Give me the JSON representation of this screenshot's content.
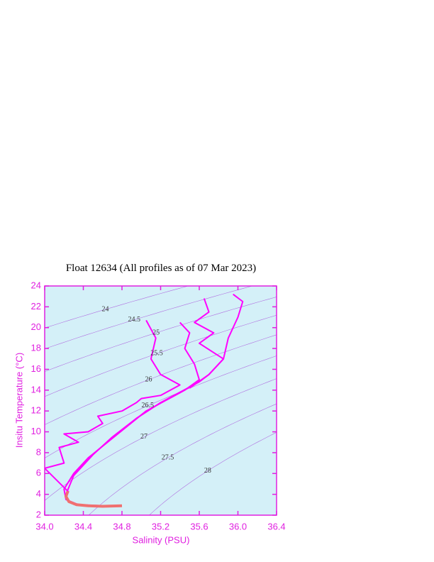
{
  "chart_data": {
    "type": "line",
    "title": "Float 12634  (All profiles as of 07 Mar 2023)",
    "x_label": "Salinity (PSU)",
    "y_label": "Insitu Temperature (°C)",
    "xlim": [
      34.0,
      36.4
    ],
    "ylim": [
      2,
      24
    ],
    "xticks": [
      {
        "value": 34.0,
        "label": "34.0"
      },
      34.4,
      34.8,
      35.2,
      35.6,
      {
        "value": 36.0,
        "label": "36.0"
      },
      36.4
    ],
    "yticks": [
      2,
      4,
      6,
      8,
      10,
      12,
      14,
      16,
      18,
      20,
      22,
      24
    ],
    "isopycnals": [
      24,
      24.5,
      25,
      25.5,
      26,
      26.5,
      27,
      27.5,
      28
    ],
    "background": "#d4f0f8",
    "axis_color": "#e020e0",
    "contour_color": "#b070e0",
    "series": [
      {
        "color": "#ff00ff",
        "x": [
          34.78,
          34.6,
          34.35,
          34.22,
          34.2,
          34.3,
          34.45,
          34.65,
          34.85,
          35.05,
          35.25,
          35.45,
          35.6,
          35.55,
          35.45,
          35.5,
          35.4
        ],
        "values": [
          2.9,
          2.9,
          3.0,
          3.5,
          4.5,
          6.0,
          7.5,
          9.0,
          10.5,
          12.0,
          13.0,
          14.0,
          15.0,
          16.5,
          18.0,
          19.5,
          20.5
        ]
      },
      {
        "color": "#ff00ff",
        "x": [
          34.22,
          34.3,
          34.5,
          34.7,
          34.95,
          35.2,
          35.4,
          35.6,
          35.7,
          35.85,
          35.9,
          36.0,
          36.05,
          35.95
        ],
        "values": [
          4.0,
          5.8,
          7.8,
          9.5,
          11.3,
          12.8,
          13.8,
          14.8,
          15.5,
          17.0,
          19.0,
          21.0,
          22.5,
          23.2
        ]
      },
      {
        "color": "#ff00ff",
        "x": [
          34.25,
          34.0,
          34.2,
          34.15,
          34.35,
          34.2,
          34.45,
          34.6,
          34.55,
          34.8,
          34.95,
          35.0,
          35.2,
          35.4,
          35.2,
          35.1,
          35.15,
          35.05
        ],
        "values": [
          4.2,
          6.5,
          7.0,
          8.5,
          9.0,
          9.8,
          10.0,
          10.8,
          11.5,
          12.0,
          12.8,
          13.2,
          13.5,
          14.5,
          15.5,
          17.0,
          19.0,
          20.7
        ]
      },
      {
        "color": "#ff00ff",
        "x": [
          35.5,
          35.7,
          35.85,
          35.6,
          35.75,
          35.55,
          35.7,
          35.65
        ],
        "values": [
          14.2,
          15.5,
          17.0,
          18.5,
          19.5,
          20.5,
          21.5,
          22.8
        ]
      },
      {
        "color": "#f07070",
        "x": [
          34.8,
          34.6,
          34.45,
          34.33,
          34.25,
          34.22,
          34.24
        ],
        "values": [
          2.9,
          2.85,
          2.9,
          3.0,
          3.3,
          3.8,
          4.3
        ]
      }
    ]
  }
}
